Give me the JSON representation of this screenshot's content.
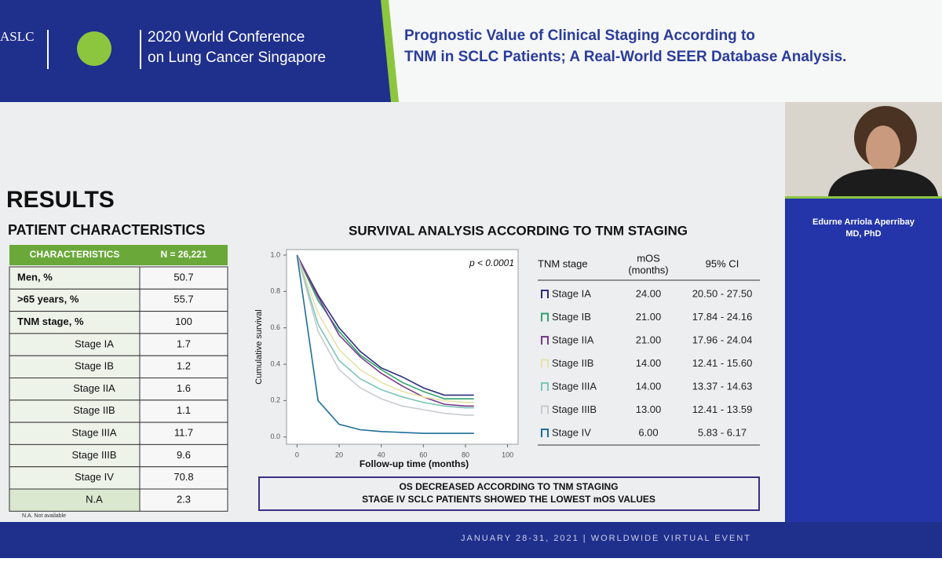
{
  "header": {
    "society": "ASLC",
    "conference": [
      "2020 World Conference",
      "on Lung Cancer Singapore"
    ],
    "title": [
      "Prognostic Value of Clinical Staging According to",
      "TNM in SCLC Patients; A Real-World SEER Database Analysis."
    ]
  },
  "slide": {
    "heading": "RESULTS",
    "characteristics": {
      "title": "PATIENT CHARACTERISTICS",
      "columns": [
        "CHARACTERISTICS",
        "N = 26,221"
      ],
      "rows": [
        [
          "Men, %",
          "50.7"
        ],
        [
          ">65 years, %",
          "55.7"
        ],
        [
          "TNM stage, %",
          "100"
        ],
        [
          "Stage IA",
          "1.7"
        ],
        [
          "Stage IB",
          "1.2"
        ],
        [
          "Stage IIA",
          "1.6"
        ],
        [
          "Stage IIB",
          "1.1"
        ],
        [
          "Stage IIIA",
          "11.7"
        ],
        [
          "Stage IIIB",
          "9.6"
        ],
        [
          "Stage IV",
          "70.8"
        ],
        [
          "N.A",
          "2.3"
        ]
      ],
      "footnote": "N.A. Not available"
    },
    "survival": {
      "title": "SURVIVAL ANALYSIS ACCORDING TO TNM STAGING",
      "table": {
        "columns": [
          "TNM stage",
          [
            "mOS",
            "(months)"
          ],
          "95% CI"
        ],
        "rows": [
          [
            "24.00",
            "20.50 - 27.50"
          ],
          [
            "21.00",
            "17.84 - 24.16"
          ],
          [
            "21.00",
            "17.96 - 24.04"
          ],
          [
            "14.00",
            "12.41 - 15.60"
          ],
          [
            "14.00",
            "13.37 - 14.63"
          ],
          [
            "13.00",
            "12.41 - 13.59"
          ],
          [
            "6.00",
            "5.83 - 6.17"
          ]
        ]
      },
      "conclusion": [
        "OS DECREASED ACCORDING TO TNM STAGING",
        "STAGE IV SCLC PATIENTS SHOWED THE LOWEST mOS VALUES"
      ]
    }
  },
  "chart_data": {
    "type": "line",
    "annotation": "p < 0.0001",
    "x_label": "Follow-up time (months)",
    "y_label": "Cumulative survival",
    "x": [
      0,
      10,
      20,
      30,
      40,
      50,
      60,
      70,
      80,
      84
    ],
    "series": [
      {
        "name": "Stage IA",
        "color": "#2b2f7a",
        "values": [
          1.0,
          0.78,
          0.6,
          0.47,
          0.38,
          0.33,
          0.27,
          0.23,
          0.23,
          0.23
        ]
      },
      {
        "name": "Stage IB",
        "color": "#2fa36b",
        "values": [
          1.0,
          0.75,
          0.58,
          0.45,
          0.37,
          0.3,
          0.25,
          0.21,
          0.21,
          0.21
        ]
      },
      {
        "name": "Stage IIA",
        "color": "#7a3a8c",
        "values": [
          1.0,
          0.77,
          0.56,
          0.44,
          0.35,
          0.28,
          0.22,
          0.18,
          0.17,
          0.17
        ]
      },
      {
        "name": "Stage IIB",
        "color": "#e8e2a8",
        "values": [
          1.0,
          0.68,
          0.48,
          0.37,
          0.3,
          0.25,
          0.22,
          0.2,
          0.19,
          0.19
        ]
      },
      {
        "name": "Stage IIIA",
        "color": "#7cc6b8",
        "values": [
          1.0,
          0.62,
          0.42,
          0.32,
          0.26,
          0.22,
          0.19,
          0.17,
          0.16,
          0.16
        ]
      },
      {
        "name": "Stage IIIB",
        "color": "#c9ccd0",
        "values": [
          1.0,
          0.58,
          0.37,
          0.27,
          0.21,
          0.17,
          0.15,
          0.13,
          0.12,
          0.12
        ]
      },
      {
        "name": "Stage IV",
        "color": "#1f6e96",
        "values": [
          1.0,
          0.2,
          0.07,
          0.04,
          0.03,
          0.025,
          0.02,
          0.02,
          0.02,
          0.02
        ]
      }
    ],
    "xlim": [
      -5,
      105
    ],
    "ylim": [
      -0.04,
      1.03
    ],
    "xticks": [
      0,
      20,
      40,
      60,
      80,
      100
    ],
    "yticks": [
      {
        "value": 0,
        "label": "0.0"
      },
      0.2,
      0.4,
      0.6,
      0.8,
      {
        "value": 1,
        "label": "1.0"
      }
    ]
  },
  "speaker": {
    "name": "Edurne Arriola Aperribay",
    "degree": "MD, PhD"
  },
  "footer": "JANUARY 28-31, 2021 | WORLDWIDE VIRTUAL EVENT"
}
